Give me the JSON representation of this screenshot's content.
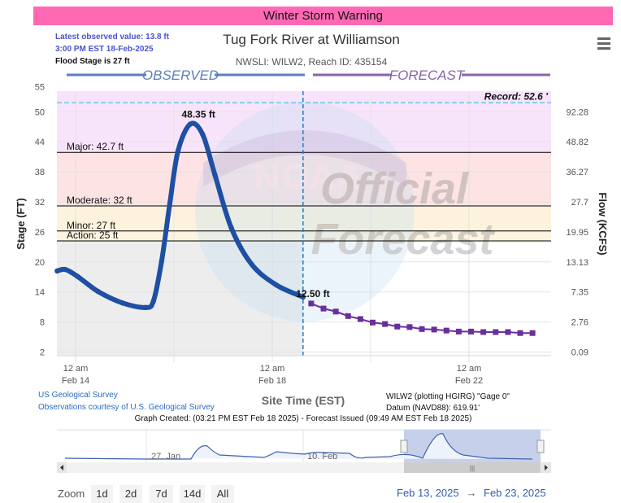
{
  "banner": {
    "text": "Winter Storm Warning",
    "color": "#ff69b4"
  },
  "header": {
    "latest_observed": "Latest observed value: 13.8 ft",
    "latest_time": "3:00 PM EST 18-Feb-2025",
    "flood_stage": "Flood Stage is 27 ft",
    "title": "Tug Fork River at Williamson",
    "subtitle": "NWSLI: WILW2, Reach ID: 435154",
    "menu_icon": "hamburger-menu-icon"
  },
  "legend": {
    "observed": "OBSERVED",
    "forecast": "FORECAST"
  },
  "watermark": {
    "line1": "Official",
    "line2": "Forecast",
    "logo": "NOAA",
    "seal_text": "NATIONAL OCEANIC AND ATMOSPHERIC ADMINISTRATION - U.S. DEPARTMENT OF COMMERCE"
  },
  "credits": {
    "usgs": "US Geological Survey",
    "courtesy": "Observations courtesy of U.S. Geological Survey",
    "gage": "WILW2 (plotting HGIRG) \"Gage 0\"",
    "datum": "Datum (NAVD88): 619.91'",
    "created": "Graph Created: (03:21 PM EST Feb 18 2025) - Forecast Issued (09:49 AM EST Feb 18 2025)"
  },
  "navigator": {
    "labels": [
      "27. Jan",
      "10. Feb"
    ]
  },
  "zoom": {
    "label": "Zoom",
    "buttons": [
      "1d",
      "2d",
      "7d",
      "14d",
      "All"
    ],
    "from": "Feb 13, 2025",
    "arrow": "→",
    "to": "Feb 23, 2025"
  },
  "chart_data": {
    "type": "line",
    "title": "Tug Fork River at Williamson",
    "xlabel": "Site Time (EST)",
    "ylabel": "Stage (FT)",
    "y2label": "Flow (KCFS)",
    "ylim": [
      1,
      55
    ],
    "y_ticks": [
      55,
      50,
      44,
      38,
      32,
      26,
      20,
      14,
      8,
      2
    ],
    "y2_ticks": [
      "",
      "92.28",
      "48.82",
      "36.27",
      "27.7",
      "19.95",
      "13.13",
      "7.35",
      "2.76",
      "0.09"
    ],
    "x_range": [
      "2025-02-13T14:00",
      "2025-02-23T16:00"
    ],
    "x_ticks": [
      {
        "t": "2025-02-14T00:00",
        "l1": "12 am",
        "l2": "Feb 14"
      },
      {
        "t": "2025-02-18T00:00",
        "l1": "12 am",
        "l2": "Feb 18"
      },
      {
        "t": "2025-02-22T00:00",
        "l1": "12 am",
        "l2": "Feb 22"
      }
    ],
    "minor_x_grid": [
      "2025-02-16T00:00",
      "2025-02-20T00:00"
    ],
    "now": "2025-02-18T15:00",
    "thresholds": [
      {
        "name": "Major",
        "value": 42.7,
        "label": "Major: 42.7 ft",
        "color": "#f8e4fa"
      },
      {
        "name": "Moderate",
        "value": 32,
        "label": "Moderate: 32 ft",
        "color": "#fde3e3"
      },
      {
        "name": "Minor",
        "value": 27,
        "label": "Minor: 27 ft",
        "color": "#fdf3dd"
      },
      {
        "name": "Action",
        "value": 25,
        "label": "Action: 25 ft",
        "color": "#fdf4e0"
      }
    ],
    "record": {
      "value": 52.6,
      "label": "Record: 52.6 '"
    },
    "annotations": [
      {
        "t": "2025-02-16T08:00",
        "value": 48.35,
        "label": "48.35 ft"
      },
      {
        "t": "2025-02-18T19:00",
        "value": 12.5,
        "label": "12.50 ft"
      }
    ],
    "series": [
      {
        "name": "Observed",
        "color": "#1f4fa3",
        "points": [
          [
            "2025-02-13T15:00",
            19.0
          ],
          [
            "2025-02-13T19:00",
            19.3
          ],
          [
            "2025-02-14T01:00",
            17.9
          ],
          [
            "2025-02-14T11:00",
            14.9
          ],
          [
            "2025-02-14T23:00",
            12.6
          ],
          [
            "2025-02-15T10:00",
            11.7
          ],
          [
            "2025-02-15T14:00",
            13.0
          ],
          [
            "2025-02-15T18:00",
            21.0
          ],
          [
            "2025-02-15T22:00",
            32.5
          ],
          [
            "2025-02-16T02:00",
            43.0
          ],
          [
            "2025-02-16T08:00",
            48.35
          ],
          [
            "2025-02-16T14:00",
            46.3
          ],
          [
            "2025-02-16T20:00",
            38.2
          ],
          [
            "2025-02-17T04:00",
            27.6
          ],
          [
            "2025-02-17T14:00",
            20.3
          ],
          [
            "2025-02-18T02:00",
            16.2
          ],
          [
            "2025-02-18T15:00",
            13.8
          ]
        ]
      },
      {
        "name": "Forecast",
        "color": "#6a2f9a",
        "points": [
          [
            "2025-02-18T19:00",
            12.5
          ],
          [
            "2025-02-19T01:00",
            11.5
          ],
          [
            "2025-02-19T07:00",
            10.9
          ],
          [
            "2025-02-19T13:00",
            10.0
          ],
          [
            "2025-02-19T19:00",
            9.4
          ],
          [
            "2025-02-20T01:00",
            8.7
          ],
          [
            "2025-02-20T07:00",
            8.4
          ],
          [
            "2025-02-20T13:00",
            7.9
          ],
          [
            "2025-02-20T19:00",
            7.8
          ],
          [
            "2025-02-21T01:00",
            7.4
          ],
          [
            "2025-02-21T07:00",
            7.3
          ],
          [
            "2025-02-21T13:00",
            7.1
          ],
          [
            "2025-02-21T19:00",
            6.9
          ],
          [
            "2025-02-22T01:00",
            6.9
          ],
          [
            "2025-02-22T07:00",
            6.8
          ],
          [
            "2025-02-22T13:00",
            6.8
          ],
          [
            "2025-02-22T19:00",
            6.8
          ],
          [
            "2025-02-23T01:00",
            6.6
          ],
          [
            "2025-02-23T07:00",
            6.6
          ]
        ]
      }
    ]
  }
}
